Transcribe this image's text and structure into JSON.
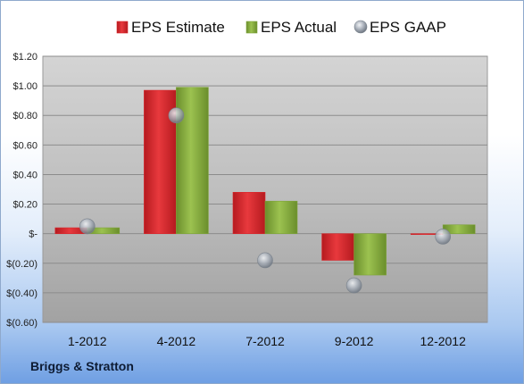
{
  "company": "Briggs & Stratton",
  "chart_data": {
    "type": "bar",
    "categories": [
      "1-2012",
      "4-2012",
      "7-2012",
      "9-2012",
      "12-2012"
    ],
    "series": [
      {
        "name": "EPS Estimate",
        "kind": "bar",
        "color": "#d9262b",
        "values": [
          0.04,
          0.97,
          0.28,
          -0.18,
          0.0
        ]
      },
      {
        "name": "EPS Actual",
        "kind": "bar",
        "color": "#7fa43a",
        "values": [
          0.04,
          0.99,
          0.22,
          -0.28,
          0.06
        ]
      },
      {
        "name": "EPS GAAP",
        "kind": "marker",
        "color": "#9aa2ad",
        "values": [
          0.05,
          0.8,
          -0.18,
          -0.35,
          -0.02
        ]
      }
    ],
    "ylim": [
      -0.6,
      1.2
    ],
    "yticks": [
      1.2,
      1.0,
      0.8,
      0.6,
      0.4,
      0.2,
      0.0,
      -0.2,
      -0.4,
      -0.6
    ],
    "ytick_labels": [
      "$1.20",
      "$1.00",
      "$0.80",
      "$0.60",
      "$0.40",
      "$0.20",
      "$-",
      "$(0.20)",
      "$(0.40)",
      "$(0.60)"
    ],
    "grid": true,
    "legend": "top"
  }
}
